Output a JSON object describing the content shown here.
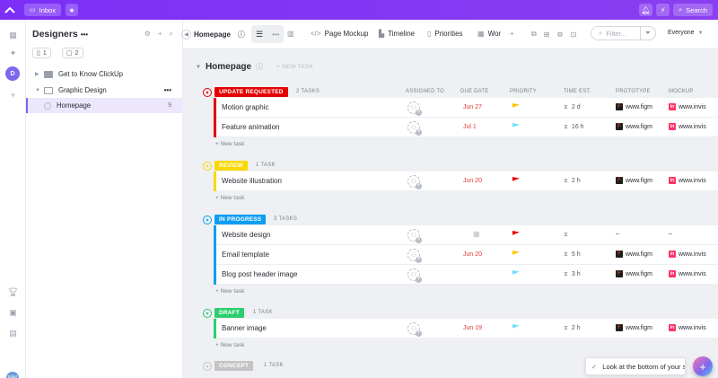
{
  "topbar": {
    "logo": "ClickUp logo",
    "inbox_label": "Inbox",
    "search_label": "Search",
    "colors": {
      "bar": "#7b2ff7"
    }
  },
  "rail": {
    "workspace_initial": "D",
    "user_initials_1": "MW",
    "user_initials_2": "M"
  },
  "sidebar": {
    "title": "Designers",
    "title_dots": "•••",
    "docs_count": "1",
    "comments_count": "2",
    "items": [
      {
        "label": "Get to Know ClickUp",
        "icon": "folder-icon",
        "color": "#9aa0ab"
      },
      {
        "label": "Graphic Design",
        "icon": "folder-outline-icon",
        "color": "#9aa0ab",
        "menu": "•••"
      },
      {
        "label": "Homepage",
        "icon": "list-icon",
        "count": "9",
        "active": true
      }
    ]
  },
  "viewbar": {
    "list_name": "Homepage",
    "views": [
      "Page Mockup",
      "Timeline",
      "Priorities",
      "Wor"
    ],
    "filter_placeholder": "Filter...",
    "assignee_filter": "Everyone"
  },
  "list": {
    "title": "Homepage",
    "new_task_header": "+ NEW TASK",
    "columns": {
      "assigned": "ASSIGNED TO",
      "due": "DUE DATE",
      "priority": "PRIORITY",
      "time": "TIME EST.",
      "prototype": "PROTOTYPE",
      "mockup": "MOCKUP"
    },
    "new_task_row": "+ New task",
    "groups": [
      {
        "status": "UPDATE REQUESTED",
        "count": "2 TASKS",
        "color": "#e50000",
        "tasks": [
          {
            "name": "Motion graphic",
            "due": "Jun 27",
            "priority": "yellow",
            "est": "2 d",
            "proto": "www.figm",
            "mock": "www.invis"
          },
          {
            "name": "Feature animation",
            "due": "Jul 1",
            "priority": "lightblue",
            "est": "16 h",
            "proto": "www.figm",
            "mock": "www.invis"
          }
        ]
      },
      {
        "status": "REVIEW",
        "count": "1 TASK",
        "color": "#f9d900",
        "tasks": [
          {
            "name": "Website illustration",
            "due": "Jun 20",
            "priority": "red",
            "est": "2 h",
            "proto": "www.figm",
            "mock": "www.invis"
          }
        ]
      },
      {
        "status": "IN PROGRESS",
        "count": "3 TASKS",
        "color": "#0d9ef0",
        "tasks": [
          {
            "name": "Website design",
            "due": "",
            "priority": "red",
            "est": "",
            "proto": "–",
            "mock": "–"
          },
          {
            "name": "Email template",
            "due": "Jun 20",
            "priority": "yellow",
            "est": "5 h",
            "proto": "www.figm",
            "mock": "www.invis"
          },
          {
            "name": "Blog post header image",
            "due": "",
            "priority": "lightblue",
            "est": "3 h",
            "proto": "www.figm",
            "mock": "www.invis"
          }
        ]
      },
      {
        "status": "DRAFT",
        "count": "1 TASK",
        "color": "#2ecd6f",
        "tasks": [
          {
            "name": "Banner image",
            "due": "Jun 19",
            "priority": "lightblue",
            "est": "2 h",
            "proto": "www.figm",
            "mock": "www.invis"
          }
        ]
      },
      {
        "status": "CONCEPT",
        "count": "1 TASK",
        "color": "#c4c4c4",
        "tasks": []
      }
    ]
  },
  "toast": {
    "text": "Look at the bottom of your s"
  },
  "fab": {
    "label": "+"
  }
}
